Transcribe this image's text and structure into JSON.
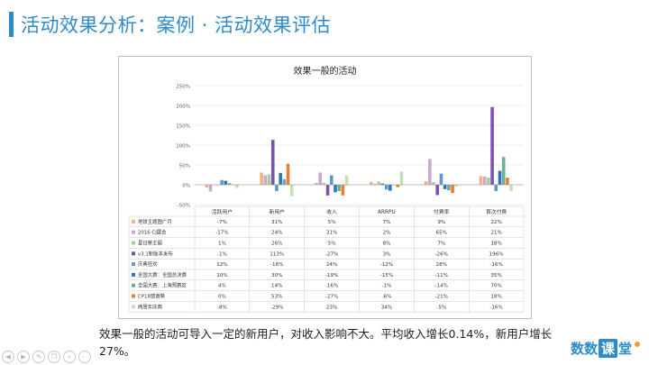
{
  "slide": {
    "title": "活动效果分析：案例 · 活动效果评估",
    "caption": "效果一般的活动可导入一定的新用户，对收入影响不大。平均收入增长0.14%，新用户增长27%。",
    "brand": {
      "part1": "数数",
      "part2": "课",
      "part3": "堂"
    },
    "toolbar_icons": [
      "arrow-left-icon",
      "arrow-right-icon",
      "pen-icon",
      "copy-icon",
      "search-icon",
      "more-icon"
    ]
  },
  "colors": {
    "accent": "#2e8bc9",
    "series": [
      "#f4b183",
      "#c9a9d1",
      "#a9d18e",
      "#7b52ae",
      "#5b9bd5",
      "#2e75b6",
      "#70ad9b",
      "#ed7d31",
      "#c5e0b4"
    ]
  },
  "chart_data": {
    "type": "bar",
    "title": "效果一般的活动",
    "categories": [
      "活跃用户",
      "新用户",
      "收入",
      "ARRPU",
      "付费率",
      "首次付费"
    ],
    "ylim": [
      -50,
      250
    ],
    "yticks": [
      -50,
      0,
      50,
      100,
      150,
      200,
      250
    ],
    "ytick_labels": [
      "-50%",
      "0%",
      "50%",
      "100%",
      "150%",
      "200%",
      "250%"
    ],
    "grid": true,
    "legend": "table-below",
    "series": [
      {
        "name": "地铁主题图广月",
        "values": [
          -7,
          31,
          5,
          7,
          9,
          22
        ],
        "labels": [
          "-7%",
          "31%",
          "5%",
          "7%",
          "9%",
          "22%"
        ]
      },
      {
        "name": "2016 CJ展会",
        "values": [
          -17,
          24,
          31,
          2,
          65,
          21
        ],
        "labels": [
          "-17%",
          "24%",
          "31%",
          "2%",
          "65%",
          "21%"
        ]
      },
      {
        "name": "夏日祭主题",
        "values": [
          1,
          26,
          5,
          8,
          7,
          18
        ],
        "labels": [
          "1%",
          "26%",
          "5%",
          "8%",
          "7%",
          "18%"
        ]
      },
      {
        "name": "v3.1新版本发布",
        "values": [
          -1,
          113,
          -27,
          3,
          -26,
          196
        ],
        "labels": [
          "-1%",
          "113%",
          "-27%",
          "3%",
          "-26%",
          "196%"
        ]
      },
      {
        "name": "庆典狂欢",
        "values": [
          12,
          -16,
          24,
          -12,
          28,
          -16
        ],
        "labels": [
          "12%",
          "-16%",
          "24%",
          "-12%",
          "28%",
          "-16%"
        ]
      },
      {
        "name": "全国大赛：全国总决赛",
        "values": [
          10,
          30,
          -19,
          -15,
          -11,
          35
        ],
        "labels": [
          "10%",
          "30%",
          "-19%",
          "-15%",
          "-11%",
          "35%"
        ]
      },
      {
        "name": "全国大赛：上海预赛区",
        "values": [
          4,
          14,
          -16,
          -1,
          -14,
          70
        ],
        "labels": [
          "4%",
          "14%",
          "-16%",
          "-1%",
          "-14%",
          "70%"
        ]
      },
      {
        "name": "CP18感谢祭",
        "values": [
          0,
          53,
          -27,
          -6,
          -21,
          18
        ],
        "labels": [
          "0%",
          "53%",
          "-27%",
          "-6%",
          "-21%",
          "18%"
        ]
      },
      {
        "name": "两周年庆典",
        "values": [
          -8,
          -29,
          23,
          34,
          -5,
          -16
        ],
        "labels": [
          "-8%",
          "-29%",
          "23%",
          "34%",
          "-5%",
          "-16%"
        ]
      }
    ]
  }
}
